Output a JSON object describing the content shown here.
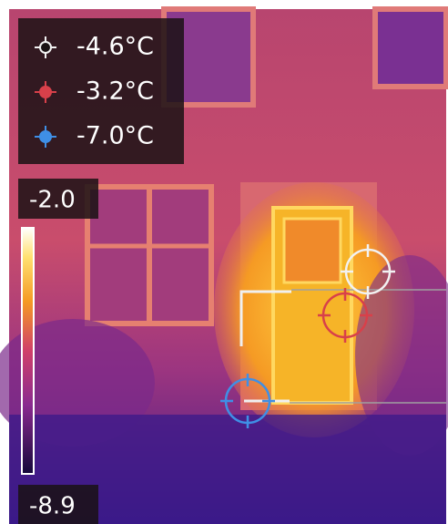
{
  "readings": [
    {
      "value": "-4.6°C",
      "color": "#f2f2f2"
    },
    {
      "value": "-3.2°C",
      "color": "#d8404a"
    },
    {
      "value": "-7.0°C",
      "color": "#3f8fe6"
    }
  ],
  "scale": {
    "max": "-2.0",
    "min": "-8.9"
  }
}
